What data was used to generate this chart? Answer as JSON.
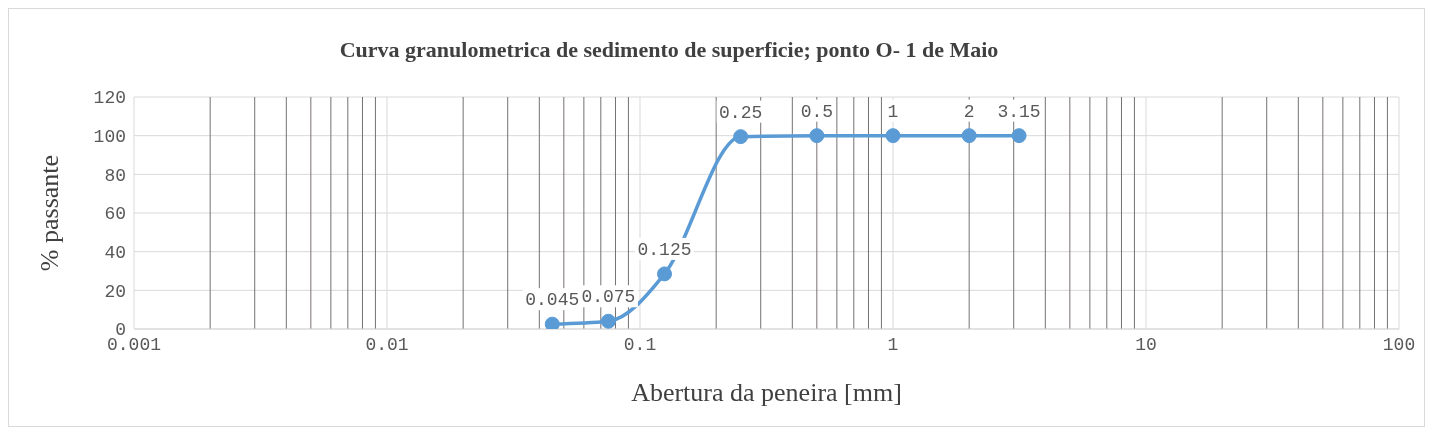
{
  "chart_data": {
    "type": "line",
    "title": "Curva granulometrica de sedimento de superficie; ponto O- 1 de Maio",
    "xlabel": "Abertura da peneira [mm]",
    "ylabel": "% passante",
    "x": [
      0.045,
      0.075,
      0.125,
      0.25,
      0.5,
      1,
      2,
      3.15
    ],
    "series": [
      {
        "color": "#5b9bd5",
        "values": [
          2.5,
          4,
          28.5,
          99.5,
          100,
          100,
          100,
          100
        ]
      }
    ],
    "annotations": [
      {
        "text": "0.045",
        "x": 0.045,
        "y": 2.5
      },
      {
        "text": "0.075",
        "x": 0.075,
        "y": 4
      },
      {
        "text": "0.125",
        "x": 0.125,
        "y": 28.5
      },
      {
        "text": "0.25",
        "x": 0.25,
        "y": 99.5
      },
      {
        "text": "0.5",
        "x": 0.5,
        "y": 100
      },
      {
        "text": "1",
        "x": 1,
        "y": 100
      },
      {
        "text": "2",
        "x": 2,
        "y": 100
      },
      {
        "text": "3.15",
        "x": 3.15,
        "y": 100
      }
    ],
    "log": "x",
    "xlim": [
      0.001,
      100
    ],
    "xticks": [
      {
        "value": 0.001,
        "label": "0.001"
      },
      {
        "value": 0.002,
        "label": null
      },
      {
        "value": 0.003,
        "label": null
      },
      {
        "value": 0.004,
        "label": null
      },
      {
        "value": 0.005,
        "label": null
      },
      {
        "value": 0.006,
        "label": null
      },
      {
        "value": 0.007,
        "label": null
      },
      {
        "value": 0.008,
        "label": null
      },
      {
        "value": 0.009,
        "label": null
      },
      {
        "value": 0.01,
        "label": "0.01"
      },
      {
        "value": 0.02,
        "label": null
      },
      {
        "value": 0.03,
        "label": null
      },
      {
        "value": 0.04,
        "label": null
      },
      {
        "value": 0.05,
        "label": null
      },
      {
        "value": 0.06,
        "label": null
      },
      {
        "value": 0.07,
        "label": null
      },
      {
        "value": 0.08,
        "label": null
      },
      {
        "value": 0.09,
        "label": null
      },
      {
        "value": 0.1,
        "label": "0.1"
      },
      {
        "value": 0.2,
        "label": null
      },
      {
        "value": 0.3,
        "label": null
      },
      {
        "value": 0.4,
        "label": null
      },
      {
        "value": 0.5,
        "label": null
      },
      {
        "value": 0.6,
        "label": null
      },
      {
        "value": 0.7,
        "label": null
      },
      {
        "value": 0.8,
        "label": null
      },
      {
        "value": 0.9,
        "label": null
      },
      1,
      {
        "value": 2,
        "label": null
      },
      {
        "value": 3,
        "label": null
      },
      {
        "value": 4,
        "label": null
      },
      {
        "value": 5,
        "label": null
      },
      {
        "value": 6,
        "label": null
      },
      {
        "value": 7,
        "label": null
      },
      {
        "value": 8,
        "label": null
      },
      {
        "value": 9,
        "label": null
      },
      10,
      {
        "value": 20,
        "label": null
      },
      {
        "value": 30,
        "label": null
      },
      {
        "value": 40,
        "label": null
      },
      {
        "value": 50,
        "label": null
      },
      {
        "value": 60,
        "label": null
      },
      {
        "value": 70,
        "label": null
      },
      {
        "value": 80,
        "label": null
      },
      {
        "value": 90,
        "label": null
      },
      100
    ],
    "ylim": [
      0,
      120
    ],
    "yticks": [
      0,
      20,
      40,
      60,
      80,
      100,
      120
    ],
    "grid": true,
    "legend": false,
    "marker": "circle",
    "line_style": "solid"
  }
}
